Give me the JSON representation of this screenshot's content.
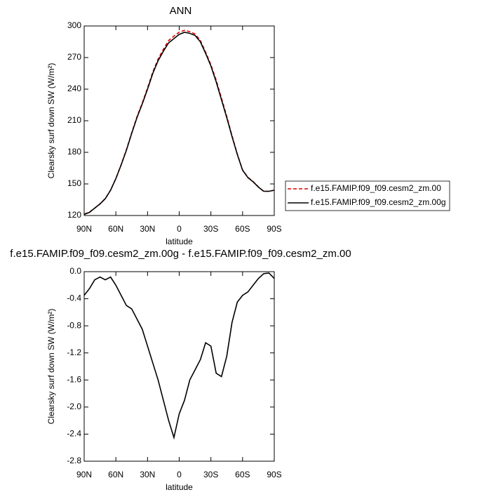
{
  "chart_data": [
    {
      "type": "line",
      "title": "ANN",
      "xlabel": "latitude",
      "ylabel": "Clearsky surf down SW (W/m²)",
      "x": [
        90,
        85,
        80,
        75,
        70,
        65,
        60,
        55,
        50,
        45,
        40,
        35,
        30,
        25,
        20,
        15,
        10,
        5,
        0,
        -5,
        -10,
        -15,
        -20,
        -25,
        -30,
        -35,
        -40,
        -45,
        -50,
        -55,
        -60,
        -65,
        -70,
        -75,
        -80,
        -85,
        -90
      ],
      "series": [
        {
          "name": "f.e15.FAMIP.f09_f09.cesm2_zm.00",
          "color": "#e00000",
          "dash": true,
          "values": [
            121.3,
            123.2,
            127.1,
            131.1,
            136.1,
            144.1,
            155.2,
            168.3,
            182.5,
            198.5,
            213.7,
            226.8,
            241.1,
            256.3,
            268.6,
            277.9,
            286.2,
            290.4,
            294.1,
            295.9,
            294.6,
            292.4,
            286.3,
            275.1,
            263.1,
            248.5,
            231.5,
            214.2,
            195.7,
            178.4,
            163.3,
            156.3,
            152.2,
            147.1,
            143.0,
            143.0,
            144.1
          ]
        },
        {
          "name": "f.e15.FAMIP.f09_f09.cesm2_zm.00g",
          "color": "#000000",
          "dash": false,
          "values": [
            121,
            123,
            127,
            131,
            136,
            144,
            155,
            168,
            182,
            198,
            213,
            226,
            240,
            255,
            267,
            276,
            284,
            288,
            292,
            294,
            293,
            291,
            285,
            274,
            262,
            247,
            230,
            213,
            195,
            178,
            163,
            156,
            152,
            147,
            143,
            143,
            144
          ]
        }
      ],
      "xlim": [
        90,
        -90
      ],
      "xticks": [
        {
          "value": 90,
          "label": "90N"
        },
        {
          "value": 60,
          "label": "60N"
        },
        {
          "value": 30,
          "label": "30N"
        },
        0,
        {
          "value": -30,
          "label": "30S"
        },
        {
          "value": -60,
          "label": "60S"
        },
        {
          "value": -90,
          "label": "90S"
        }
      ],
      "ylim": [
        120,
        300
      ],
      "yticks": [
        120,
        150,
        180,
        210,
        240,
        270,
        300
      ],
      "legend": "right"
    },
    {
      "type": "line",
      "title": "f.e15.FAMIP.f09_f09.cesm2_zm.00g - f.e15.FAMIP.f09_f09.cesm2_zm.00",
      "xlabel": "latitude",
      "ylabel": "Clearsky surf down SW (W/m²)",
      "x": [
        90,
        85,
        80,
        75,
        70,
        65,
        60,
        55,
        50,
        45,
        40,
        35,
        30,
        25,
        20,
        15,
        10,
        5,
        0,
        -5,
        -10,
        -15,
        -20,
        -25,
        -30,
        -35,
        -40,
        -45,
        -50,
        -55,
        -60,
        -65,
        -70,
        -75,
        -80,
        -85,
        -90
      ],
      "values": [
        -0.35,
        -0.25,
        -0.12,
        -0.08,
        -0.12,
        -0.08,
        -0.2,
        -0.35,
        -0.5,
        -0.55,
        -0.7,
        -0.85,
        -1.1,
        -1.35,
        -1.6,
        -1.9,
        -2.2,
        -2.45,
        -2.1,
        -1.9,
        -1.6,
        -1.45,
        -1.3,
        -1.05,
        -1.1,
        -1.5,
        -1.55,
        -1.25,
        -0.75,
        -0.45,
        -0.35,
        -0.3,
        -0.2,
        -0.1,
        -0.03,
        -0.02,
        -0.1
      ],
      "color": "#000000",
      "xlim": [
        90,
        -90
      ],
      "xticks": [
        {
          "value": 90,
          "label": "90N"
        },
        {
          "value": 60,
          "label": "60N"
        },
        {
          "value": 30,
          "label": "30N"
        },
        0,
        {
          "value": -30,
          "label": "30S"
        },
        {
          "value": -60,
          "label": "60S"
        },
        {
          "value": -90,
          "label": "90S"
        }
      ],
      "ylim": [
        -2.8,
        0
      ],
      "yticks": [
        {
          "value": -2.8,
          "label": "-2.8"
        },
        -2.4,
        {
          "value": -2,
          "label": "-2.0"
        },
        -1.6,
        -1.2,
        -0.8,
        -0.4,
        {
          "value": 0,
          "label": "0.0"
        }
      ]
    }
  ]
}
